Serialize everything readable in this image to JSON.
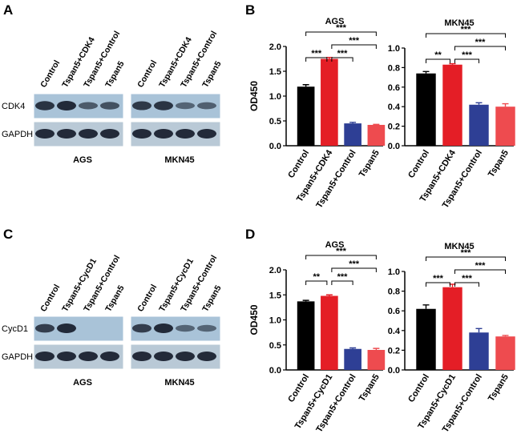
{
  "panel_labels": [
    "A",
    "B",
    "C",
    "D"
  ],
  "blots": [
    {
      "lanes": [
        "Control",
        "Tspan5+CDK4",
        "Tspan5+Control",
        "Tspan5"
      ],
      "rows": [
        "CDK4",
        "GAPDH"
      ],
      "cells": [
        "AGS",
        "MKN45"
      ]
    },
    {
      "lanes": [
        "Control",
        "Tspan5+CycD1",
        "Tspan5+Control",
        "Tspan5"
      ],
      "rows": [
        "CycD1",
        "GAPDH"
      ],
      "cells": [
        "AGS",
        "MKN45"
      ]
    }
  ],
  "chart_data": [
    {
      "type": "bar",
      "title": "AGS",
      "ylabel": "OD450",
      "categories": [
        "Control",
        "Tspan5+CDK4",
        "Tspan5+Control",
        "Tspan5"
      ],
      "values": [
        1.19,
        1.75,
        0.45,
        0.42
      ],
      "errors": [
        0.04,
        0.03,
        0.02,
        0.01
      ],
      "colors": [
        "#000000",
        "#e41e26",
        "#2e3f95",
        "#ee4b4f"
      ],
      "ylim": [
        0,
        2.0
      ],
      "yticks": [
        {
          "value": 0,
          "label": "0.0"
        },
        0.5,
        {
          "value": 1,
          "label": "1.0"
        },
        1.5,
        {
          "value": 2,
          "label": "2.0"
        }
      ],
      "brackets": [
        {
          "between": [
            0,
            1
          ],
          "label": "***"
        },
        {
          "between": [
            1,
            2
          ],
          "label": "***"
        },
        {
          "between": [
            1,
            3
          ],
          "label": "***"
        },
        {
          "between": [
            0,
            3
          ],
          "label": "***"
        }
      ]
    },
    {
      "type": "bar",
      "title": "MKN45",
      "categories": [
        "Control",
        "Tspan5+CDK4",
        "Tspan5+Control",
        "Tspan5"
      ],
      "values": [
        0.74,
        0.83,
        0.42,
        0.4
      ],
      "errors": [
        0.02,
        0.01,
        0.02,
        0.03
      ],
      "colors": [
        "#000000",
        "#e41e26",
        "#2e3f95",
        "#ee4b4f"
      ],
      "ylim": [
        0,
        1.0
      ],
      "yticks": [
        {
          "value": 0,
          "label": "0.0"
        },
        0.2,
        0.4,
        0.6,
        0.8,
        {
          "value": 1,
          "label": "1.0"
        }
      ],
      "brackets": [
        {
          "between": [
            0,
            1
          ],
          "label": "**"
        },
        {
          "between": [
            1,
            2
          ],
          "label": "***"
        },
        {
          "between": [
            1,
            3
          ],
          "label": "***"
        },
        {
          "between": [
            0,
            3
          ],
          "label": "***"
        }
      ]
    },
    {
      "type": "bar",
      "title": "AGS",
      "ylabel": "OD450",
      "categories": [
        "Control",
        "Tspan5+CycD1",
        "Tspan5+Control",
        "Tspan5"
      ],
      "values": [
        1.37,
        1.48,
        0.42,
        0.4
      ],
      "errors": [
        0.02,
        0.02,
        0.02,
        0.03
      ],
      "colors": [
        "#000000",
        "#e41e26",
        "#2e3f95",
        "#ee4b4f"
      ],
      "ylim": [
        0,
        2.0
      ],
      "yticks": [
        {
          "value": 0,
          "label": "0.0"
        },
        0.5,
        {
          "value": 1,
          "label": "1.0"
        },
        1.5,
        {
          "value": 2,
          "label": "2.0"
        }
      ],
      "brackets": [
        {
          "between": [
            0,
            1
          ],
          "label": "**"
        },
        {
          "between": [
            1,
            2
          ],
          "label": "***"
        },
        {
          "between": [
            1,
            3
          ],
          "label": "***"
        },
        {
          "between": [
            0,
            3
          ],
          "label": "***"
        }
      ]
    },
    {
      "type": "bar",
      "title": "MKN45",
      "categories": [
        "Control",
        "Tspan5+CycD1",
        "Tspan5+Control",
        "Tspan5"
      ],
      "values": [
        0.62,
        0.84,
        0.38,
        0.34
      ],
      "errors": [
        0.04,
        0.03,
        0.04,
        0.01
      ],
      "colors": [
        "#000000",
        "#e41e26",
        "#2e3f95",
        "#ee4b4f"
      ],
      "ylim": [
        0,
        1.0
      ],
      "yticks": [
        {
          "value": 0,
          "label": "0.0"
        },
        0.2,
        0.4,
        0.6,
        0.8,
        {
          "value": 1,
          "label": "1.0"
        }
      ],
      "brackets": [
        {
          "between": [
            0,
            1
          ],
          "label": "***"
        },
        {
          "between": [
            1,
            2
          ],
          "label": "***"
        },
        {
          "between": [
            1,
            3
          ],
          "label": "***"
        },
        {
          "between": [
            0,
            3
          ],
          "label": "***"
        }
      ]
    }
  ]
}
